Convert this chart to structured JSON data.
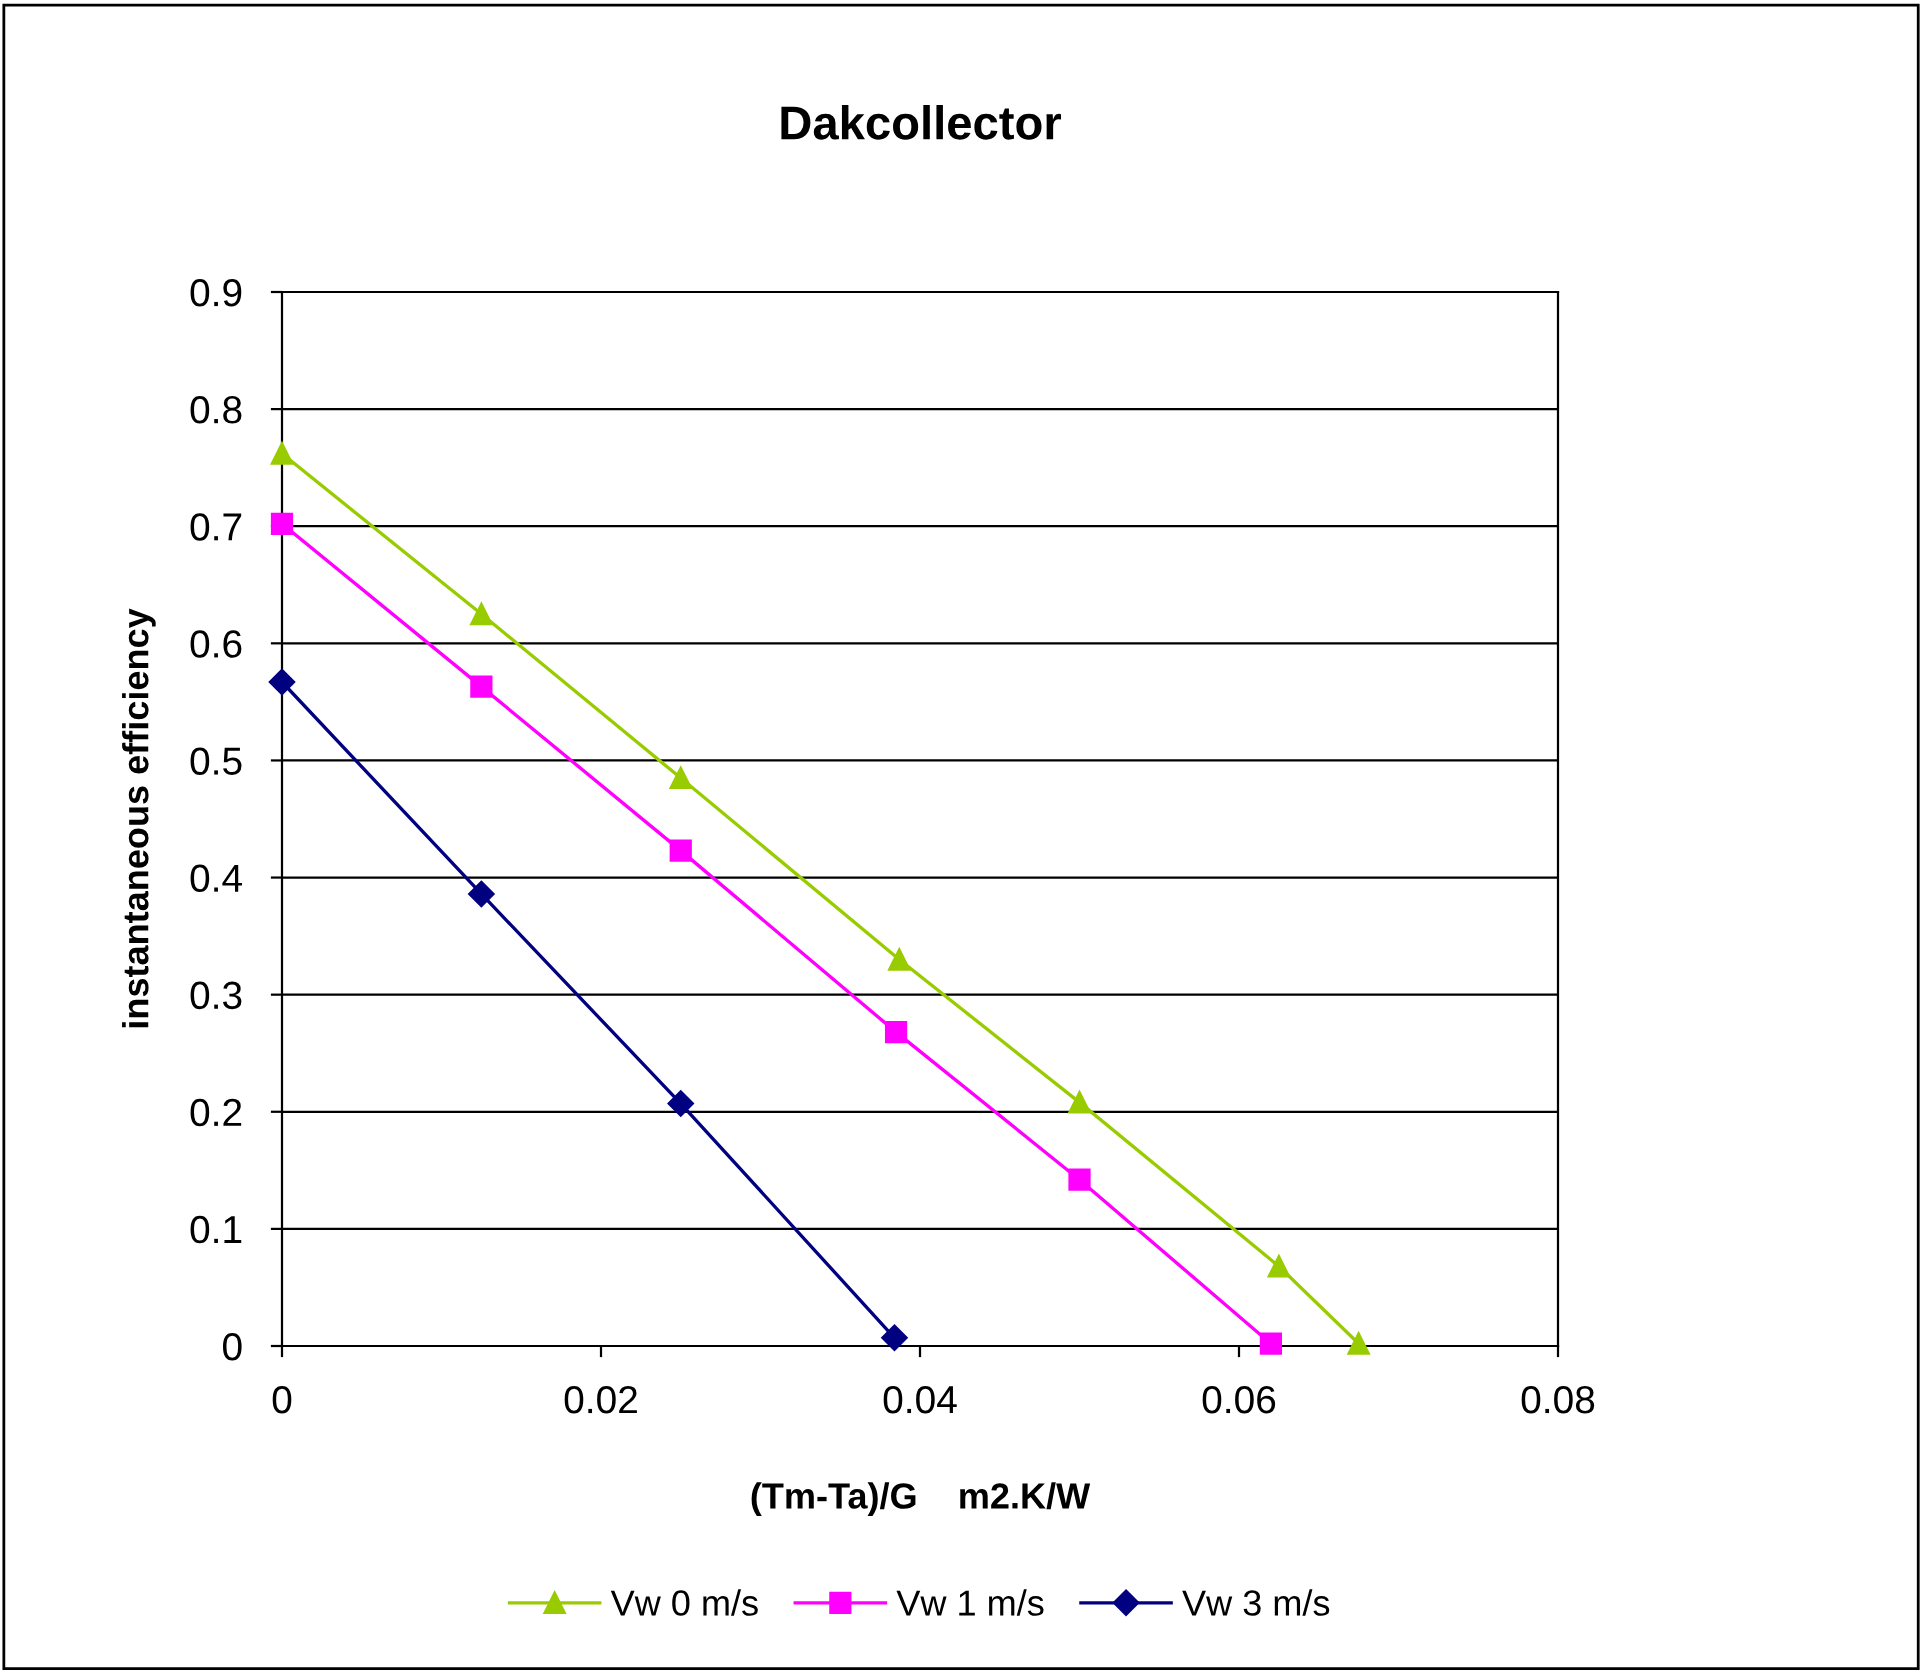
{
  "chart_data": {
    "type": "line",
    "title": "Dakcollector",
    "xlabel": "(Tm-Ta)/G    m2.K/W",
    "ylabel": "instantaneous efficiency",
    "xlim": [
      0,
      0.08
    ],
    "xticks": [
      0,
      0.02,
      0.04,
      0.06,
      0.08
    ],
    "ylim": [
      0,
      0.9
    ],
    "yticks": [
      0,
      0.1,
      0.2,
      0.3,
      0.4,
      0.5,
      0.6,
      0.7,
      0.8,
      0.9
    ],
    "grid": "y",
    "legend": "bottom",
    "series": [
      {
        "name": "Vw 0 m/s",
        "color": "#99cc00",
        "marker": "triangle",
        "x": [
          0,
          0.0125,
          0.025,
          0.0387,
          0.05,
          0.0625,
          0.0675
        ],
        "values": [
          0.762,
          0.625,
          0.485,
          0.33,
          0.208,
          0.068,
          0.002
        ]
      },
      {
        "name": "Vw 1 m/s",
        "color": "#ff00ff",
        "marker": "square",
        "x": [
          0,
          0.0125,
          0.025,
          0.0385,
          0.05,
          0.062
        ],
        "values": [
          0.702,
          0.563,
          0.423,
          0.268,
          0.142,
          0.002
        ]
      },
      {
        "name": "Vw 3 m/s",
        "color": "#000080",
        "marker": "diamond",
        "x": [
          0,
          0.0125,
          0.025,
          0.0384
        ],
        "values": [
          0.567,
          0.386,
          0.207,
          0.007
        ]
      }
    ]
  }
}
